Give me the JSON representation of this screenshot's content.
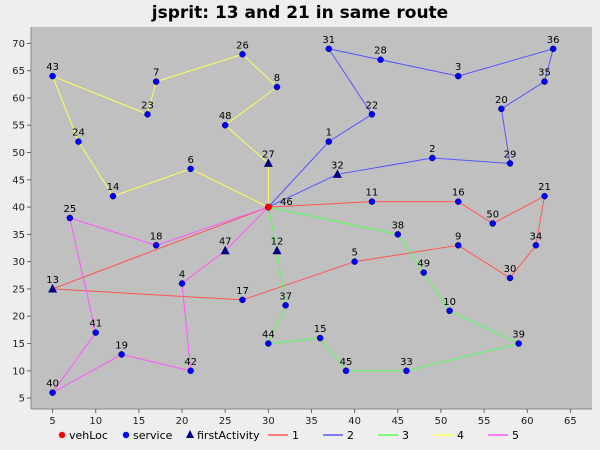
{
  "chart_data": {
    "type": "scatter",
    "title": "jsprit: 13 and 21 in same route",
    "xlim": [
      2.5,
      67.5
    ],
    "ylim": [
      3,
      73
    ],
    "xticks": [
      5,
      10,
      15,
      20,
      25,
      30,
      35,
      40,
      45,
      50,
      55,
      60,
      65
    ],
    "yticks": [
      5,
      10,
      15,
      20,
      25,
      30,
      35,
      40,
      45,
      50,
      55,
      60,
      65,
      70
    ],
    "grid": false,
    "legend_position": "bottom",
    "colors": {
      "plot_bg": "#c0c0c0",
      "vehLoc": "#ff0000",
      "service": "#0000ff",
      "firstActivity": "#000080"
    },
    "vehLoc": {
      "name": "vehLoc",
      "x": 30,
      "y": 40,
      "label": "46"
    },
    "points": [
      {
        "id": "1",
        "x": 37,
        "y": 52
      },
      {
        "id": "2",
        "x": 49,
        "y": 49
      },
      {
        "id": "3",
        "x": 52,
        "y": 64
      },
      {
        "id": "4",
        "x": 20,
        "y": 26
      },
      {
        "id": "5",
        "x": 40,
        "y": 30
      },
      {
        "id": "6",
        "x": 21,
        "y": 47
      },
      {
        "id": "7",
        "x": 17,
        "y": 63
      },
      {
        "id": "8",
        "x": 31,
        "y": 62
      },
      {
        "id": "9",
        "x": 52,
        "y": 33
      },
      {
        "id": "10",
        "x": 51,
        "y": 21
      },
      {
        "id": "11",
        "x": 42,
        "y": 41
      },
      {
        "id": "12",
        "x": 31,
        "y": 32
      },
      {
        "id": "13",
        "x": 5,
        "y": 25
      },
      {
        "id": "14",
        "x": 12,
        "y": 42
      },
      {
        "id": "15",
        "x": 36,
        "y": 16
      },
      {
        "id": "16",
        "x": 52,
        "y": 41
      },
      {
        "id": "17",
        "x": 27,
        "y": 23
      },
      {
        "id": "18",
        "x": 17,
        "y": 33
      },
      {
        "id": "19",
        "x": 13,
        "y": 13
      },
      {
        "id": "20",
        "x": 57,
        "y": 58
      },
      {
        "id": "21",
        "x": 62,
        "y": 42
      },
      {
        "id": "22",
        "x": 42,
        "y": 57
      },
      {
        "id": "23",
        "x": 16,
        "y": 57
      },
      {
        "id": "24",
        "x": 8,
        "y": 52
      },
      {
        "id": "25",
        "x": 7,
        "y": 38
      },
      {
        "id": "26",
        "x": 27,
        "y": 68
      },
      {
        "id": "27",
        "x": 30,
        "y": 48
      },
      {
        "id": "28",
        "x": 43,
        "y": 67
      },
      {
        "id": "29",
        "x": 58,
        "y": 48
      },
      {
        "id": "30",
        "x": 58,
        "y": 27
      },
      {
        "id": "31",
        "x": 37,
        "y": 69
      },
      {
        "id": "32",
        "x": 38,
        "y": 46
      },
      {
        "id": "33",
        "x": 46,
        "y": 10
      },
      {
        "id": "34",
        "x": 61,
        "y": 33
      },
      {
        "id": "35",
        "x": 62,
        "y": 63
      },
      {
        "id": "36",
        "x": 63,
        "y": 69
      },
      {
        "id": "37",
        "x": 32,
        "y": 22
      },
      {
        "id": "38",
        "x": 45,
        "y": 35
      },
      {
        "id": "39",
        "x": 59,
        "y": 15
      },
      {
        "id": "40",
        "x": 5,
        "y": 6
      },
      {
        "id": "41",
        "x": 10,
        "y": 17
      },
      {
        "id": "42",
        "x": 21,
        "y": 10
      },
      {
        "id": "43",
        "x": 5,
        "y": 64
      },
      {
        "id": "44",
        "x": 30,
        "y": 15
      },
      {
        "id": "45",
        "x": 39,
        "y": 10
      },
      {
        "id": "47",
        "x": 25,
        "y": 32
      },
      {
        "id": "48",
        "x": 25,
        "y": 55
      },
      {
        "id": "49",
        "x": 48,
        "y": 28
      },
      {
        "id": "50",
        "x": 56,
        "y": 37
      }
    ],
    "first_activities": [
      "13",
      "32",
      "12",
      "27",
      "47"
    ],
    "routes": [
      {
        "name": "1",
        "color": "#ff5555",
        "stops": [
          "46",
          "13",
          "17",
          "5",
          "9",
          "30",
          "34",
          "21",
          "50",
          "16",
          "11",
          "46"
        ]
      },
      {
        "name": "2",
        "color": "#5555ff",
        "stops": [
          "46",
          "32",
          "2",
          "29",
          "20",
          "35",
          "36",
          "3",
          "28",
          "31",
          "22",
          "1",
          "46"
        ]
      },
      {
        "name": "3",
        "color": "#55ff55",
        "stops": [
          "46",
          "12",
          "37",
          "44",
          "15",
          "45",
          "33",
          "39",
          "10",
          "49",
          "38",
          "46"
        ]
      },
      {
        "name": "4",
        "color": "#ffff55",
        "stops": [
          "46",
          "27",
          "48",
          "8",
          "26",
          "7",
          "23",
          "43",
          "24",
          "14",
          "6",
          "46"
        ]
      },
      {
        "name": "5",
        "color": "#ff55ff",
        "stops": [
          "46",
          "47",
          "4",
          "42",
          "19",
          "40",
          "41",
          "25",
          "18",
          "46"
        ]
      }
    ],
    "legend": [
      "vehLoc",
      "service",
      "firstActivity",
      "1",
      "2",
      "3",
      "4",
      "5"
    ]
  }
}
